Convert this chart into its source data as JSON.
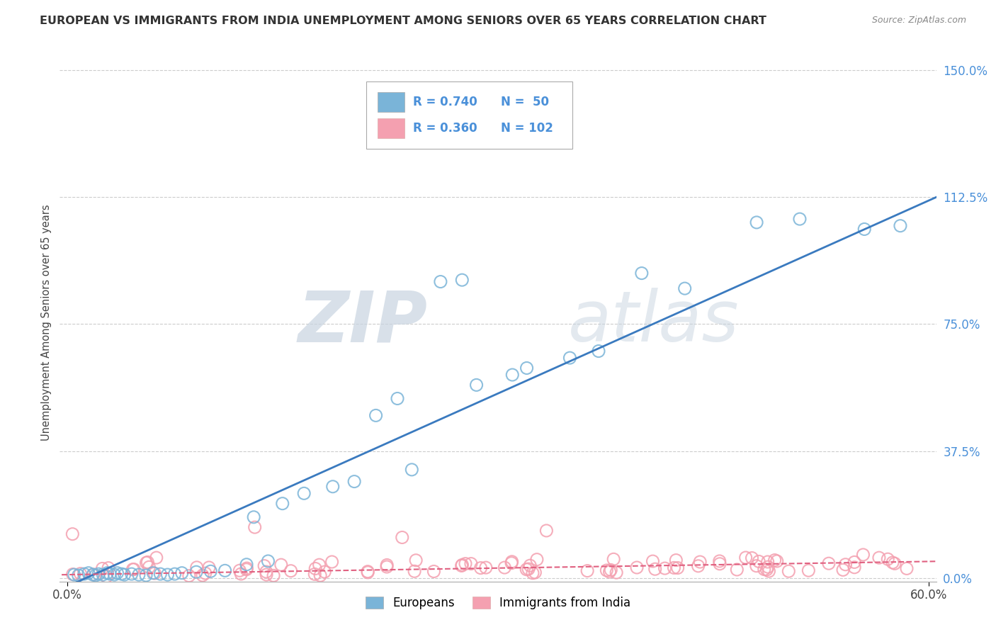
{
  "title": "EUROPEAN VS IMMIGRANTS FROM INDIA UNEMPLOYMENT AMONG SENIORS OVER 65 YEARS CORRELATION CHART",
  "source": "Source: ZipAtlas.com",
  "ylabel": "Unemployment Among Seniors over 65 years",
  "xlim": [
    0,
    0.6
  ],
  "ylim": [
    0,
    1.5
  ],
  "europeans_color": "#7ab4d8",
  "india_color": "#f4a0b0",
  "europe_line_color": "#3a7abf",
  "india_line_color": "#e06080",
  "legend_R_europe": "0.740",
  "legend_N_europe": "50",
  "legend_R_india": "0.360",
  "legend_N_india": "102",
  "watermark_zip": "ZIP",
  "watermark_atlas": "atlas",
  "ytick_color": "#4a90d9",
  "grid_color": "#cccccc"
}
